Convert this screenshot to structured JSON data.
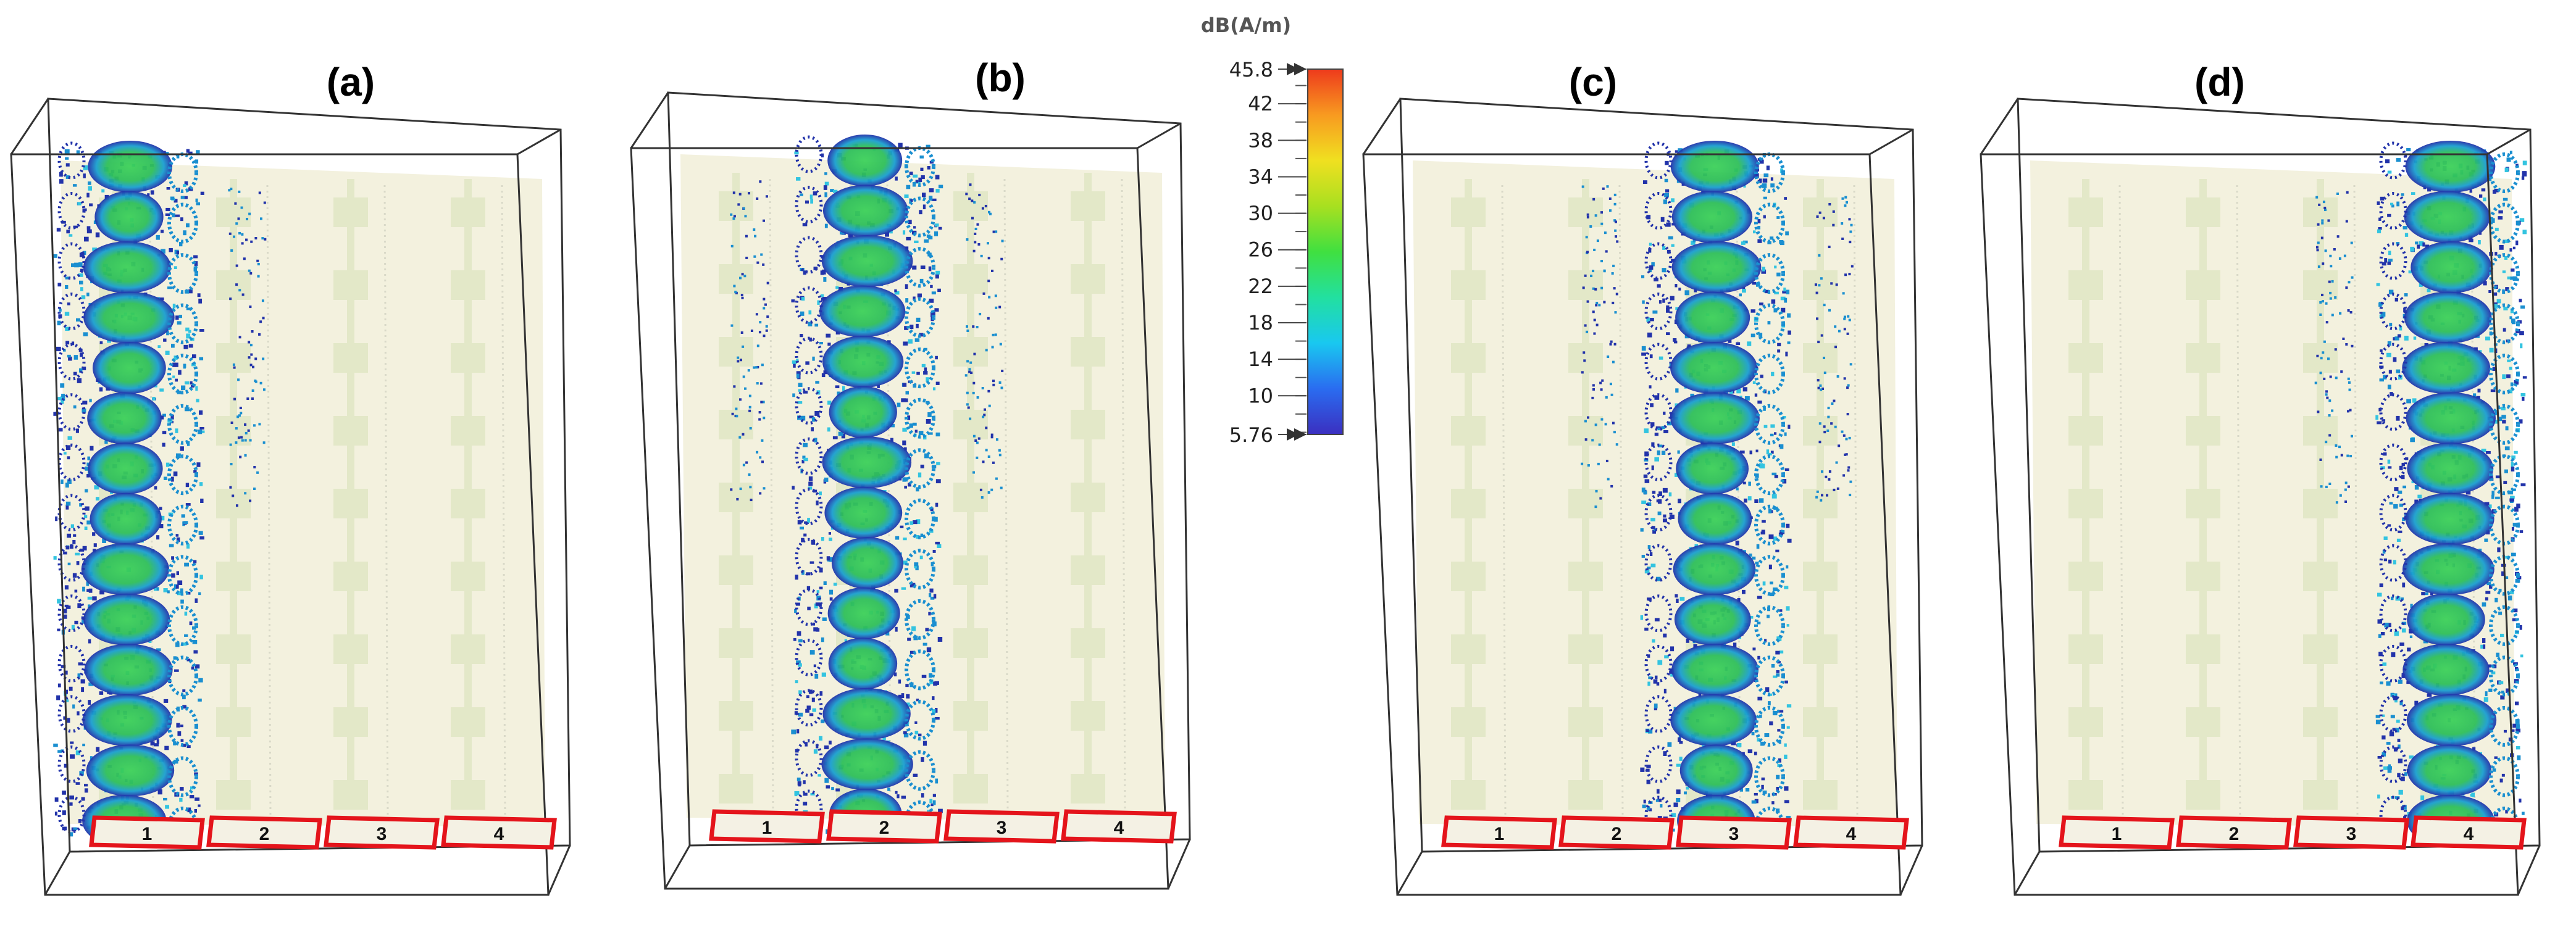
{
  "colorbar": {
    "unit": "dB(A/m)",
    "max_label": "45.8",
    "min_label": "5.76",
    "min": 5.76,
    "max": 45.8,
    "ticks": [
      "42",
      "38",
      "34",
      "30",
      "26",
      "22",
      "18",
      "14",
      "10"
    ],
    "tick_values": [
      42,
      38,
      34,
      30,
      26,
      22,
      18,
      14,
      10
    ],
    "gradient_colors": [
      "#3b2fc0",
      "#2a6cf0",
      "#19c8f0",
      "#22e0a0",
      "#40e040",
      "#a8e020",
      "#f0e020",
      "#f89a20",
      "#ee3a1c"
    ]
  },
  "panels": [
    {
      "label": "(a)",
      "excited_port": 1,
      "ports": [
        "1",
        "2",
        "3",
        "4"
      ]
    },
    {
      "label": "(b)",
      "excited_port": 2,
      "ports": [
        "1",
        "2",
        "3",
        "4"
      ]
    },
    {
      "label": "(c)",
      "excited_port": 3,
      "ports": [
        "1",
        "2",
        "3",
        "4"
      ]
    },
    {
      "label": "(d)",
      "excited_port": 4,
      "ports": [
        "1",
        "2",
        "3",
        "4"
      ]
    }
  ],
  "colors": {
    "substrate": "#f3f1de",
    "trace": "#e3e8c8",
    "port_outline": "#e4141b",
    "box_line": "#333333",
    "field_high": "#2fbf5a",
    "field_mid": "#1a8fd0",
    "field_low": "#2233aa"
  }
}
